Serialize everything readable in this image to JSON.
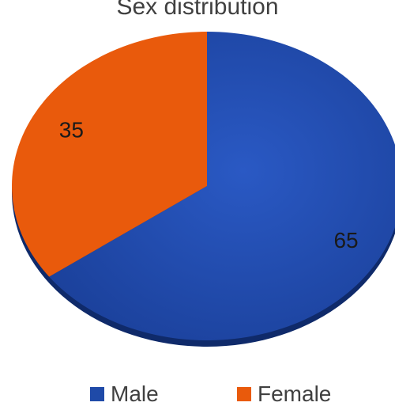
{
  "chart_data": {
    "type": "pie",
    "title": "Sex distribution",
    "categories": [
      "Male",
      "Female"
    ],
    "values": [
      65,
      35
    ],
    "data_labels": [
      "65",
      "35"
    ],
    "colors": [
      "#1f4aa8",
      "#e95a0c"
    ],
    "legend_position": "bottom"
  },
  "legend": {
    "male_label": "Male",
    "female_label": "Female"
  }
}
